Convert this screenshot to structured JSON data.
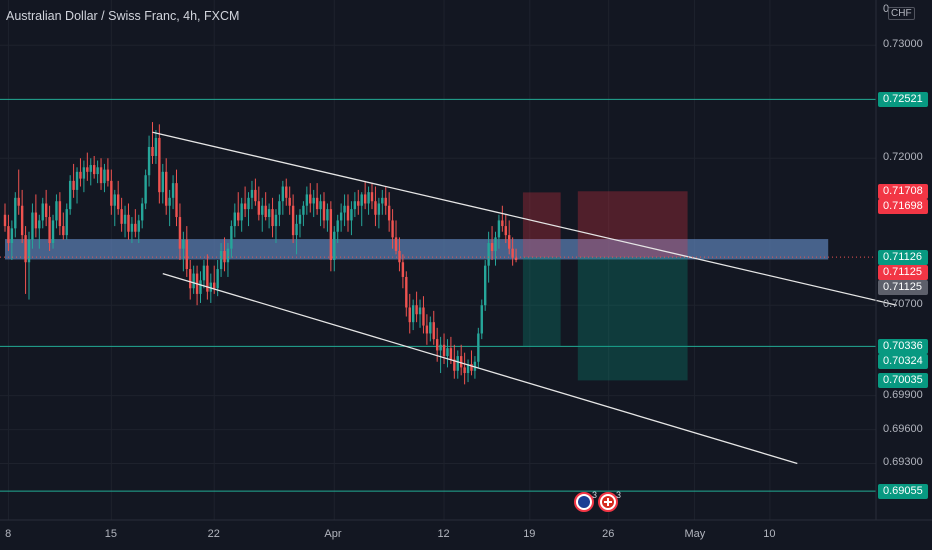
{
  "header": {
    "title": "Australian Dollar / Swiss Franc, 4h, FXCM"
  },
  "price_axis": {
    "currency": "CHF",
    "top_tick": "0",
    "ticks": [
      {
        "label": "0.73000",
        "value": 0.73
      },
      {
        "label": "0.72000",
        "value": 0.72
      },
      {
        "label": "0.70700",
        "value": 0.707
      },
      {
        "label": "0.69900",
        "value": 0.699
      },
      {
        "label": "0.69600",
        "value": 0.696
      },
      {
        "label": "0.69300",
        "value": 0.693
      }
    ],
    "tags": [
      {
        "label": "0.72521",
        "value": 0.72521,
        "color": "#089981"
      },
      {
        "label": "0.71708",
        "value": 0.71708,
        "color": "#f23645"
      },
      {
        "label": "0.71698",
        "value": 0.71698,
        "color": "#f23645"
      },
      {
        "label": "0.71126",
        "value": 0.71126,
        "color": "#089981"
      },
      {
        "label": "0.71125",
        "value": 0.71125,
        "color": "#f23645"
      },
      {
        "label": "0.71125",
        "value": 0.7112,
        "color": "#5d606b"
      },
      {
        "label": "0.70336",
        "value": 0.70336,
        "color": "#089981"
      },
      {
        "label": "0.70324",
        "value": 0.70324,
        "color": "#089981"
      },
      {
        "label": "0.70035",
        "value": 0.70035,
        "color": "#089981"
      },
      {
        "label": "0.69055",
        "value": 0.69055,
        "color": "#089981"
      }
    ]
  },
  "time_axis": {
    "labels": [
      {
        "label": "8",
        "bar": 1
      },
      {
        "label": "15",
        "bar": 31
      },
      {
        "label": "22",
        "bar": 61
      },
      {
        "label": "Apr",
        "bar": 96
      },
      {
        "label": "12",
        "bar": 128
      },
      {
        "label": "19",
        "bar": 153
      },
      {
        "label": "26",
        "bar": 176
      },
      {
        "label": "May",
        "bar": 201
      },
      {
        "label": "10",
        "bar": 223
      }
    ]
  },
  "events": [
    {
      "icon": "australia-flag-icon",
      "count": "3"
    },
    {
      "icon": "swiss-flag-icon",
      "count": "3"
    }
  ],
  "colors": {
    "background": "#131722",
    "up": "#26a69a",
    "down": "#ef5350",
    "grid": "#1e222d",
    "zone": "#5b7fb4",
    "level": "#22ab94",
    "trendline": "#e6e6e6"
  },
  "chart_data": {
    "type": "candlestick",
    "symbol": "AUDCHF",
    "interval": "4h",
    "source": "FXCM",
    "ylim": [
      0.688,
      0.734
    ],
    "candles": [
      [
        0.715,
        0.716,
        0.7135,
        0.714
      ],
      [
        0.714,
        0.715,
        0.7118,
        0.7125
      ],
      [
        0.7125,
        0.7145,
        0.711,
        0.7138
      ],
      [
        0.7138,
        0.717,
        0.713,
        0.7165
      ],
      [
        0.7165,
        0.719,
        0.715,
        0.7158
      ],
      [
        0.7158,
        0.7172,
        0.7125,
        0.7132
      ],
      [
        0.7132,
        0.714,
        0.708,
        0.7108
      ],
      [
        0.7108,
        0.7135,
        0.7075,
        0.7128
      ],
      [
        0.7128,
        0.716,
        0.712,
        0.7152
      ],
      [
        0.7152,
        0.7168,
        0.713,
        0.7138
      ],
      [
        0.7138,
        0.715,
        0.712,
        0.7145
      ],
      [
        0.7145,
        0.7165,
        0.7138,
        0.716
      ],
      [
        0.716,
        0.7172,
        0.714,
        0.7148
      ],
      [
        0.7148,
        0.7158,
        0.7118,
        0.7125
      ],
      [
        0.7125,
        0.715,
        0.712,
        0.7145
      ],
      [
        0.7145,
        0.7168,
        0.7138,
        0.7162
      ],
      [
        0.7162,
        0.717,
        0.7132,
        0.714
      ],
      [
        0.714,
        0.7152,
        0.7128,
        0.7132
      ],
      [
        0.7132,
        0.716,
        0.7128,
        0.7155
      ],
      [
        0.7155,
        0.7185,
        0.715,
        0.718
      ],
      [
        0.718,
        0.7195,
        0.7165,
        0.7172
      ],
      [
        0.7172,
        0.7192,
        0.716,
        0.7188
      ],
      [
        0.7188,
        0.72,
        0.7175,
        0.7182
      ],
      [
        0.7182,
        0.7198,
        0.717,
        0.7192
      ],
      [
        0.7192,
        0.7205,
        0.718,
        0.7188
      ],
      [
        0.7188,
        0.72,
        0.7176,
        0.7194
      ],
      [
        0.7194,
        0.7202,
        0.7182,
        0.7186
      ],
      [
        0.7186,
        0.7198,
        0.7178,
        0.7192
      ],
      [
        0.7192,
        0.72,
        0.7172,
        0.7178
      ],
      [
        0.7178,
        0.7195,
        0.717,
        0.719
      ],
      [
        0.719,
        0.72,
        0.7175,
        0.718
      ],
      [
        0.718,
        0.719,
        0.715,
        0.7158
      ],
      [
        0.7158,
        0.7172,
        0.714,
        0.7168
      ],
      [
        0.7168,
        0.718,
        0.715,
        0.7155
      ],
      [
        0.7155,
        0.7165,
        0.7135,
        0.7142
      ],
      [
        0.7142,
        0.7158,
        0.713,
        0.715
      ],
      [
        0.715,
        0.716,
        0.7128,
        0.7135
      ],
      [
        0.7135,
        0.7148,
        0.7125,
        0.7142
      ],
      [
        0.7142,
        0.7155,
        0.713,
        0.7135
      ],
      [
        0.7135,
        0.715,
        0.7125,
        0.7145
      ],
      [
        0.7145,
        0.7165,
        0.7138,
        0.716
      ],
      [
        0.716,
        0.719,
        0.7155,
        0.7185
      ],
      [
        0.7185,
        0.722,
        0.7175,
        0.721
      ],
      [
        0.721,
        0.7232,
        0.7195,
        0.7202
      ],
      [
        0.7202,
        0.7225,
        0.7195,
        0.7218
      ],
      [
        0.7218,
        0.723,
        0.716,
        0.717
      ],
      [
        0.717,
        0.7195,
        0.716,
        0.7188
      ],
      [
        0.7188,
        0.72,
        0.715,
        0.7158
      ],
      [
        0.7158,
        0.7172,
        0.714,
        0.7165
      ],
      [
        0.7165,
        0.7185,
        0.7155,
        0.7178
      ],
      [
        0.7178,
        0.719,
        0.714,
        0.7148
      ],
      [
        0.7148,
        0.716,
        0.711,
        0.712
      ],
      [
        0.712,
        0.7135,
        0.71,
        0.7128
      ],
      [
        0.7128,
        0.714,
        0.7095,
        0.7102
      ],
      [
        0.7102,
        0.711,
        0.7075,
        0.7085
      ],
      [
        0.7085,
        0.7105,
        0.708,
        0.7098
      ],
      [
        0.7098,
        0.7105,
        0.707,
        0.708
      ],
      [
        0.708,
        0.71,
        0.7072,
        0.7092
      ],
      [
        0.7092,
        0.711,
        0.7085,
        0.7105
      ],
      [
        0.7105,
        0.7115,
        0.7075,
        0.7082
      ],
      [
        0.7082,
        0.7098,
        0.7072,
        0.709
      ],
      [
        0.709,
        0.7105,
        0.708,
        0.7085
      ],
      [
        0.7085,
        0.711,
        0.7078,
        0.7102
      ],
      [
        0.7102,
        0.7125,
        0.7095,
        0.7118
      ],
      [
        0.7118,
        0.713,
        0.71,
        0.7108
      ],
      [
        0.7108,
        0.7125,
        0.7095,
        0.712
      ],
      [
        0.712,
        0.7145,
        0.7112,
        0.714
      ],
      [
        0.714,
        0.716,
        0.713,
        0.7152
      ],
      [
        0.7152,
        0.717,
        0.714,
        0.7145
      ],
      [
        0.7145,
        0.7165,
        0.7135,
        0.716
      ],
      [
        0.716,
        0.7175,
        0.7148,
        0.7155
      ],
      [
        0.7155,
        0.717,
        0.714,
        0.7165
      ],
      [
        0.7165,
        0.718,
        0.7155,
        0.7172
      ],
      [
        0.7172,
        0.7182,
        0.7158,
        0.7162
      ],
      [
        0.7162,
        0.7175,
        0.7145,
        0.715
      ],
      [
        0.715,
        0.7165,
        0.7135,
        0.7158
      ],
      [
        0.7158,
        0.717,
        0.7145,
        0.7148
      ],
      [
        0.7148,
        0.716,
        0.7138,
        0.7155
      ],
      [
        0.7155,
        0.7165,
        0.713,
        0.714
      ],
      [
        0.714,
        0.7155,
        0.7125,
        0.715
      ],
      [
        0.715,
        0.7168,
        0.714,
        0.7162
      ],
      [
        0.7162,
        0.718,
        0.715,
        0.7175
      ],
      [
        0.7175,
        0.7182,
        0.7158,
        0.7165
      ],
      [
        0.7165,
        0.7175,
        0.715,
        0.7158
      ],
      [
        0.7158,
        0.7168,
        0.7125,
        0.7132
      ],
      [
        0.7132,
        0.715,
        0.7115,
        0.7142
      ],
      [
        0.7142,
        0.7155,
        0.713,
        0.715
      ],
      [
        0.715,
        0.7162,
        0.714,
        0.7158
      ],
      [
        0.7158,
        0.7175,
        0.715,
        0.7168
      ],
      [
        0.7168,
        0.7178,
        0.7152,
        0.716
      ],
      [
        0.716,
        0.7172,
        0.7148,
        0.7165
      ],
      [
        0.7165,
        0.7178,
        0.715,
        0.7155
      ],
      [
        0.7155,
        0.7168,
        0.714,
        0.7162
      ],
      [
        0.7162,
        0.717,
        0.7138,
        0.7145
      ],
      [
        0.7145,
        0.716,
        0.7135,
        0.7155
      ],
      [
        0.7155,
        0.7162,
        0.71,
        0.711
      ],
      [
        0.711,
        0.714,
        0.71,
        0.7135
      ],
      [
        0.7135,
        0.715,
        0.7125,
        0.7145
      ],
      [
        0.7145,
        0.716,
        0.7135,
        0.7152
      ],
      [
        0.7152,
        0.7168,
        0.714,
        0.7158
      ],
      [
        0.7158,
        0.7168,
        0.7135,
        0.7145
      ],
      [
        0.7145,
        0.7162,
        0.7132,
        0.7155
      ],
      [
        0.7155,
        0.717,
        0.7148,
        0.7162
      ],
      [
        0.7162,
        0.7172,
        0.715,
        0.7158
      ],
      [
        0.7158,
        0.717,
        0.714,
        0.7168
      ],
      [
        0.7168,
        0.718,
        0.7155,
        0.716
      ],
      [
        0.716,
        0.7175,
        0.715,
        0.717
      ],
      [
        0.717,
        0.7178,
        0.7155,
        0.7162
      ],
      [
        0.7162,
        0.7175,
        0.714,
        0.715
      ],
      [
        0.715,
        0.7165,
        0.7138,
        0.716
      ],
      [
        0.716,
        0.7172,
        0.715,
        0.7165
      ],
      [
        0.7165,
        0.7175,
        0.715,
        0.7158
      ],
      [
        0.7158,
        0.717,
        0.7135,
        0.7145
      ],
      [
        0.7145,
        0.7155,
        0.712,
        0.713
      ],
      [
        0.713,
        0.7145,
        0.7115,
        0.7118
      ],
      [
        0.7118,
        0.713,
        0.71,
        0.7108
      ],
      [
        0.7108,
        0.7115,
        0.7085,
        0.7095
      ],
      [
        0.7095,
        0.71,
        0.706,
        0.7068
      ],
      [
        0.7068,
        0.708,
        0.7045,
        0.7055
      ],
      [
        0.7055,
        0.7075,
        0.7048,
        0.707
      ],
      [
        0.707,
        0.7082,
        0.7055,
        0.7062
      ],
      [
        0.7062,
        0.7075,
        0.705,
        0.7068
      ],
      [
        0.7068,
        0.7078,
        0.7045,
        0.7052
      ],
      [
        0.7052,
        0.7062,
        0.7035,
        0.7045
      ],
      [
        0.7045,
        0.706,
        0.7038,
        0.7055
      ],
      [
        0.7055,
        0.7065,
        0.7035,
        0.704
      ],
      [
        0.704,
        0.705,
        0.702,
        0.703
      ],
      [
        0.703,
        0.7042,
        0.701,
        0.7035
      ],
      [
        0.7035,
        0.7045,
        0.7018,
        0.7025
      ],
      [
        0.7025,
        0.704,
        0.7015,
        0.7032
      ],
      [
        0.7032,
        0.7042,
        0.7018,
        0.7022
      ],
      [
        0.7022,
        0.7035,
        0.7005,
        0.7012
      ],
      [
        0.7012,
        0.703,
        0.7005,
        0.7025
      ],
      [
        0.7025,
        0.7035,
        0.7008,
        0.7015
      ],
      [
        0.7015,
        0.7028,
        0.7,
        0.701
      ],
      [
        0.701,
        0.7022,
        0.7002,
        0.7018
      ],
      [
        0.7018,
        0.703,
        0.7008,
        0.7012
      ],
      [
        0.7012,
        0.7025,
        0.7005,
        0.702
      ],
      [
        0.702,
        0.705,
        0.7015,
        0.7045
      ],
      [
        0.7045,
        0.7075,
        0.704,
        0.707
      ],
      [
        0.707,
        0.711,
        0.7065,
        0.7105
      ],
      [
        0.7105,
        0.7135,
        0.709,
        0.7125
      ],
      [
        0.7125,
        0.714,
        0.711,
        0.7118
      ],
      [
        0.7118,
        0.7135,
        0.7105,
        0.713
      ],
      [
        0.713,
        0.715,
        0.712,
        0.7145
      ],
      [
        0.7145,
        0.7158,
        0.7135,
        0.714
      ],
      [
        0.714,
        0.715,
        0.7125,
        0.7132
      ],
      [
        0.7132,
        0.7145,
        0.7115,
        0.712
      ],
      [
        0.712,
        0.713,
        0.7105,
        0.7112
      ],
      [
        0.7112,
        0.712,
        0.7108,
        0.711
      ]
    ],
    "horizontal_levels": [
      0.72521,
      0.70336,
      0.69055
    ],
    "zone": {
      "from": 0.7114,
      "to": 0.7125,
      "start_bar": 0,
      "end_bar": 240
    },
    "current_price": 0.71125,
    "trendlines": [
      {
        "from": [
          43,
          0.7223
        ],
        "to": [
          260,
          0.707
        ]
      },
      {
        "from": [
          46,
          0.7098
        ],
        "to": [
          231,
          0.693
        ]
      }
    ],
    "positions": [
      {
        "start_bar": 151,
        "end_bar": 162,
        "entry": 0.71125,
        "stop": 0.71698,
        "target": 0.70336
      },
      {
        "start_bar": 167,
        "end_bar": 199,
        "entry": 0.71125,
        "stop": 0.71708,
        "target": 0.70035
      }
    ],
    "price_axis_labels": [
      "0.73000",
      "0.72000",
      "0.70700",
      "0.69900",
      "0.69600",
      "0.69300"
    ],
    "time_axis_labels": [
      "8",
      "15",
      "22",
      "Apr",
      "12",
      "19",
      "26",
      "May",
      "10"
    ]
  }
}
